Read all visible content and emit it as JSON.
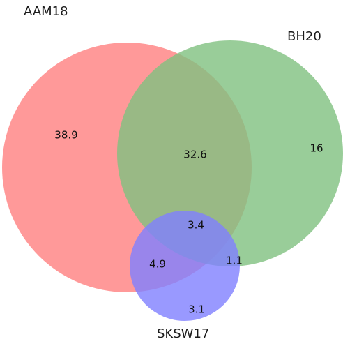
{
  "diagram": {
    "type": "venn3",
    "sets": [
      {
        "key": "a",
        "name": "AAM18",
        "color": "#ff8080"
      },
      {
        "key": "b",
        "name": "BH20",
        "color": "#80c080"
      },
      {
        "key": "c",
        "name": "SKSW17",
        "color": "#8080ff"
      }
    ],
    "regions": {
      "a_only": "38.9",
      "ab_only": "32.6",
      "b_only": "16",
      "abc": "3.4",
      "ac_only": "4.9",
      "bc_only": "1.1",
      "c_only": "3.1"
    }
  }
}
